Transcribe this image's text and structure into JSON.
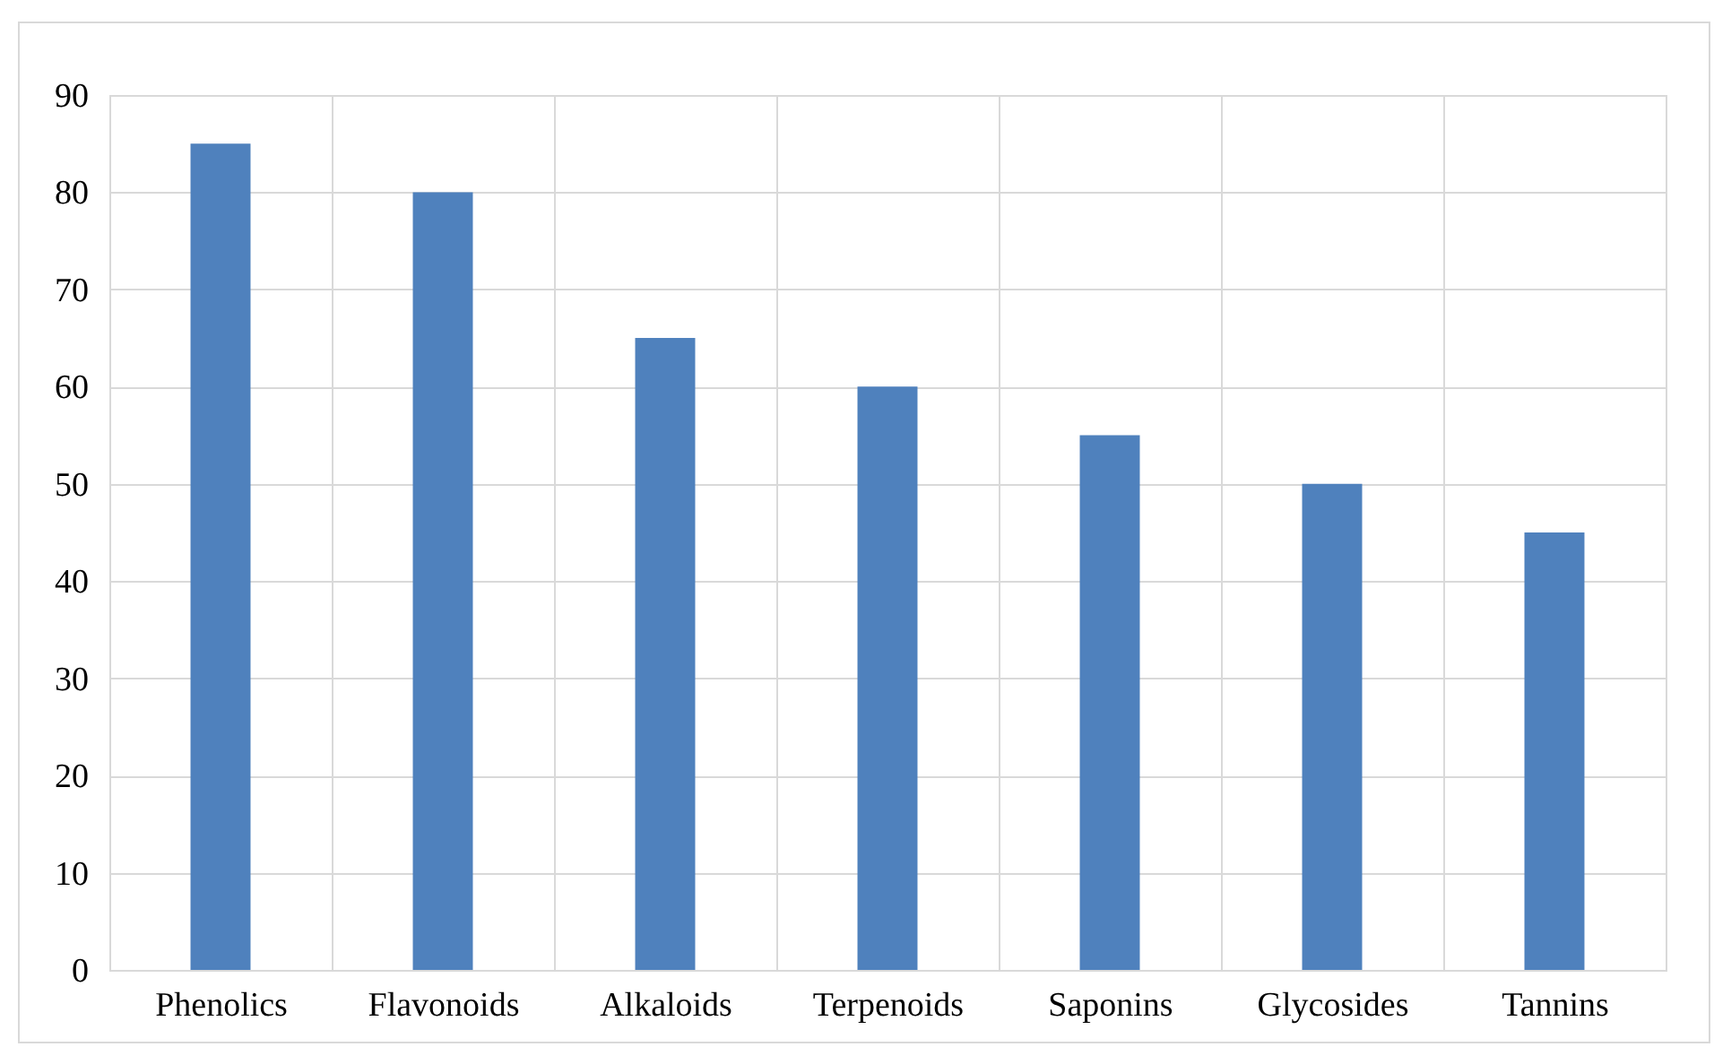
{
  "chart_data": {
    "type": "bar",
    "categories": [
      "Phenolics",
      "Flavonoids",
      "Alkaloids",
      "Terpenoids",
      "Saponins",
      "Glycosides",
      "Tannins"
    ],
    "values": [
      85,
      80,
      65,
      60,
      55,
      50,
      45
    ],
    "color": "#4f81bd",
    "ylim": [
      0,
      90
    ],
    "yticks": [
      0,
      10,
      20,
      30,
      40,
      50,
      60,
      70,
      80,
      90
    ],
    "grid": true
  }
}
